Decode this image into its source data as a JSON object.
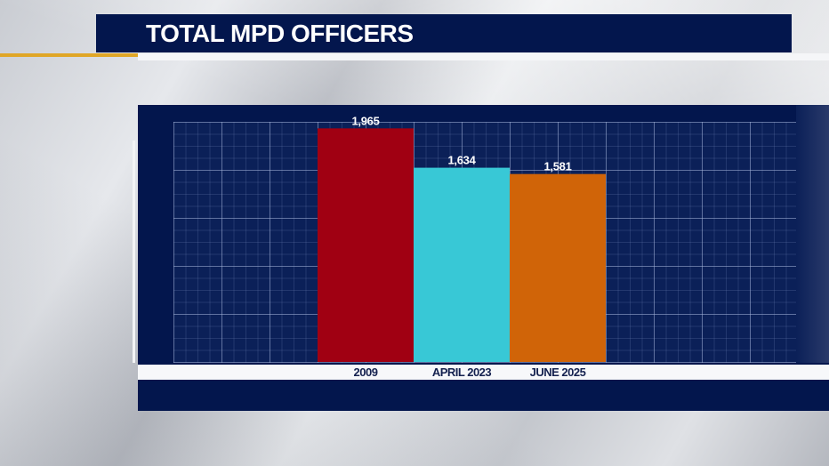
{
  "header": {
    "title": "TOTAL MPD OFFICERS"
  },
  "chart_data": {
    "type": "bar",
    "title": "TOTAL MPD OFFICERS",
    "categories": [
      "2009",
      "APRIL 2023",
      "JUNE 2025"
    ],
    "values": [
      1965,
      1634,
      1581
    ],
    "value_labels": [
      "1,965",
      "1,634",
      "1,581"
    ],
    "colors": [
      "#a00012",
      "#38c8d6",
      "#d06408"
    ],
    "xlabel": "",
    "ylabel": "",
    "ylim": [
      0,
      2020
    ],
    "grid": true,
    "legend": "none"
  }
}
